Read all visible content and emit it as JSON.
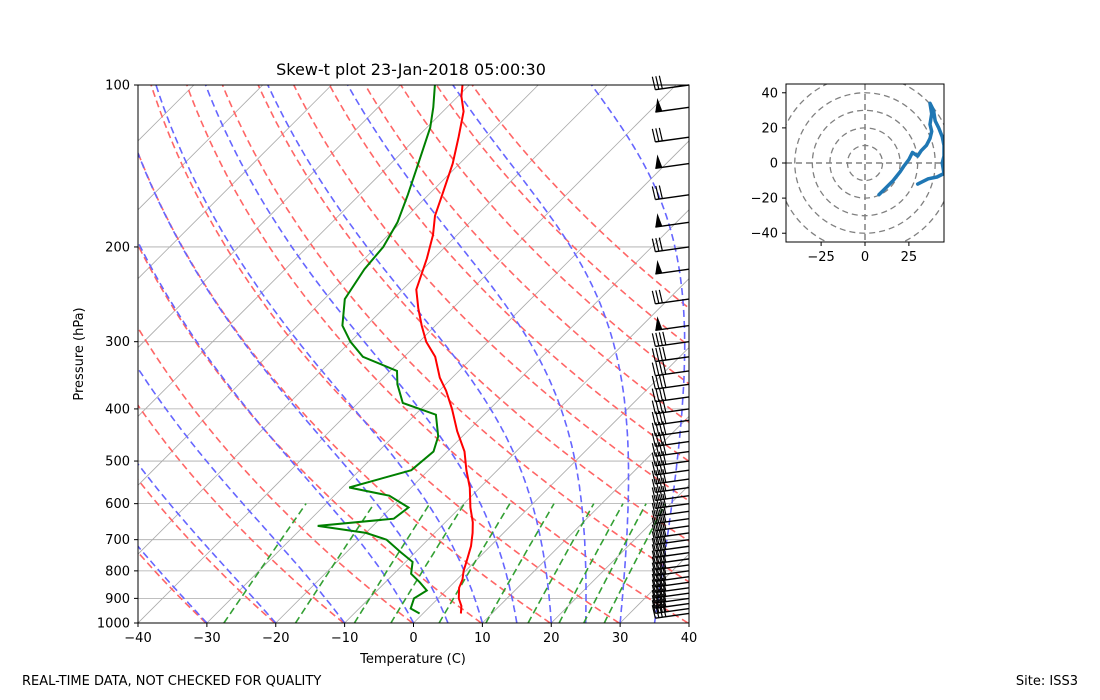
{
  "footer": {
    "left": "REAL-TIME DATA, NOT CHECKED FOR QUALITY",
    "right": "Site: ISS3"
  },
  "chart_data": [
    {
      "type": "skew-t",
      "title": "Skew-t plot 23-Jan-2018 05:00:30",
      "xlabel": "Temperature (C)",
      "ylabel": "Pressure (hPa)",
      "xlim": [
        -40,
        40
      ],
      "ylim": [
        1000,
        100
      ],
      "y_scale": "log",
      "xticks": [
        -40,
        -30,
        -20,
        -10,
        0,
        10,
        20,
        30,
        40
      ],
      "yticks": [
        1000,
        900,
        800,
        700,
        600,
        500,
        400,
        300,
        200,
        100
      ],
      "grid": true,
      "colors": {
        "temperature": "#ff0000",
        "dewpoint": "#008000",
        "dry_adiabats": "#ff6666",
        "moist_adiabats": "#6666ff",
        "mixing_ratio": "#33a033",
        "isotherms": "#aaaaaa",
        "barbs": "#000000"
      },
      "temperature_profile": [
        {
          "p": 960,
          "t": 5.5
        },
        {
          "p": 930,
          "t": 4.5
        },
        {
          "p": 900,
          "t": 3.0
        },
        {
          "p": 860,
          "t": 1.5
        },
        {
          "p": 830,
          "t": 0.8
        },
        {
          "p": 800,
          "t": -0.3
        },
        {
          "p": 760,
          "t": -1.5
        },
        {
          "p": 720,
          "t": -2.8
        },
        {
          "p": 680,
          "t": -4.5
        },
        {
          "p": 650,
          "t": -6.0
        },
        {
          "p": 610,
          "t": -8.5
        },
        {
          "p": 560,
          "t": -11.5
        },
        {
          "p": 520,
          "t": -14.5
        },
        {
          "p": 480,
          "t": -17.5
        },
        {
          "p": 440,
          "t": -21.5
        },
        {
          "p": 400,
          "t": -25.5
        },
        {
          "p": 370,
          "t": -29.0
        },
        {
          "p": 350,
          "t": -31.8
        },
        {
          "p": 320,
          "t": -35.5
        },
        {
          "p": 300,
          "t": -39.0
        },
        {
          "p": 280,
          "t": -42.0
        },
        {
          "p": 260,
          "t": -45.0
        },
        {
          "p": 240,
          "t": -48.0
        },
        {
          "p": 210,
          "t": -51.0
        },
        {
          "p": 190,
          "t": -53.5
        },
        {
          "p": 175,
          "t": -56.0
        },
        {
          "p": 160,
          "t": -58.0
        },
        {
          "p": 140,
          "t": -61.0
        },
        {
          "p": 125,
          "t": -64.0
        },
        {
          "p": 112,
          "t": -67.0
        },
        {
          "p": 105,
          "t": -69.5
        },
        {
          "p": 100,
          "t": -71.0
        }
      ],
      "dewpoint_profile": [
        {
          "p": 960,
          "t": -0.5
        },
        {
          "p": 940,
          "t": -2.5
        },
        {
          "p": 900,
          "t": -3.5
        },
        {
          "p": 870,
          "t": -2.8
        },
        {
          "p": 840,
          "t": -5.0
        },
        {
          "p": 810,
          "t": -7.5
        },
        {
          "p": 770,
          "t": -9.0
        },
        {
          "p": 740,
          "t": -12.0
        },
        {
          "p": 700,
          "t": -16.0
        },
        {
          "p": 680,
          "t": -20.0
        },
        {
          "p": 660,
          "t": -28.0
        },
        {
          "p": 640,
          "t": -18.0
        },
        {
          "p": 610,
          "t": -17.5
        },
        {
          "p": 580,
          "t": -22.0
        },
        {
          "p": 560,
          "t": -29.0
        },
        {
          "p": 520,
          "t": -22.5
        },
        {
          "p": 480,
          "t": -22.0
        },
        {
          "p": 450,
          "t": -23.5
        },
        {
          "p": 410,
          "t": -27.0
        },
        {
          "p": 390,
          "t": -33.5
        },
        {
          "p": 360,
          "t": -37.0
        },
        {
          "p": 340,
          "t": -39.0
        },
        {
          "p": 320,
          "t": -46.0
        },
        {
          "p": 300,
          "t": -50.0
        },
        {
          "p": 280,
          "t": -53.5
        },
        {
          "p": 250,
          "t": -57.0
        },
        {
          "p": 220,
          "t": -58.5
        },
        {
          "p": 200,
          "t": -59.0
        },
        {
          "p": 180,
          "t": -60.5
        },
        {
          "p": 160,
          "t": -63.0
        },
        {
          "p": 140,
          "t": -66.0
        },
        {
          "p": 120,
          "t": -69.5
        },
        {
          "p": 110,
          "t": -72.0
        },
        {
          "p": 100,
          "t": -75.0
        }
      ],
      "dry_adiabats_theta_K": [
        243,
        253,
        263,
        273,
        283,
        293,
        303,
        313,
        323,
        333,
        343,
        353,
        363,
        373,
        383,
        393
      ],
      "moist_adiabats_C": [
        -30,
        -20,
        -10,
        0,
        5,
        10,
        15,
        20,
        25,
        30,
        35
      ],
      "mixing_ratio_gkg": [
        0.4,
        1,
        2,
        3,
        5,
        8,
        12,
        16,
        20,
        24
      ],
      "wind_barb_pressures": [
        100,
        110,
        125,
        140,
        160,
        180,
        200,
        220,
        250,
        280,
        300,
        320,
        340,
        360,
        380,
        400,
        420,
        440,
        460,
        480,
        500,
        520,
        540,
        560,
        580,
        600,
        620,
        640,
        660,
        680,
        700,
        720,
        740,
        760,
        780,
        800,
        820,
        840,
        860,
        880,
        900,
        920,
        940,
        960
      ]
    },
    {
      "type": "hodograph",
      "xticks": [
        -25,
        0,
        25
      ],
      "yticks": [
        -40,
        -20,
        0,
        20,
        40
      ],
      "xlim": [
        -45,
        45
      ],
      "ylim": [
        -45,
        45
      ],
      "range_rings": [
        10,
        20,
        30,
        40,
        50
      ],
      "color": "#1f77b4",
      "points": [
        [
          8,
          -18
        ],
        [
          12,
          -14
        ],
        [
          16,
          -10
        ],
        [
          20,
          -5
        ],
        [
          22,
          -2
        ],
        [
          25,
          2
        ],
        [
          27,
          6
        ],
        [
          30,
          4
        ],
        [
          32,
          7
        ],
        [
          35,
          10
        ],
        [
          37,
          14
        ],
        [
          38,
          18
        ],
        [
          37,
          22
        ],
        [
          38,
          28
        ],
        [
          37,
          34
        ],
        [
          39,
          30
        ],
        [
          40,
          24
        ],
        [
          42,
          20
        ],
        [
          44,
          15
        ],
        [
          45,
          10
        ],
        [
          45,
          4
        ],
        [
          44,
          0
        ],
        [
          45,
          -6
        ],
        [
          41,
          -8
        ],
        [
          36,
          -9
        ],
        [
          32,
          -11
        ],
        [
          30,
          -12
        ]
      ]
    }
  ]
}
